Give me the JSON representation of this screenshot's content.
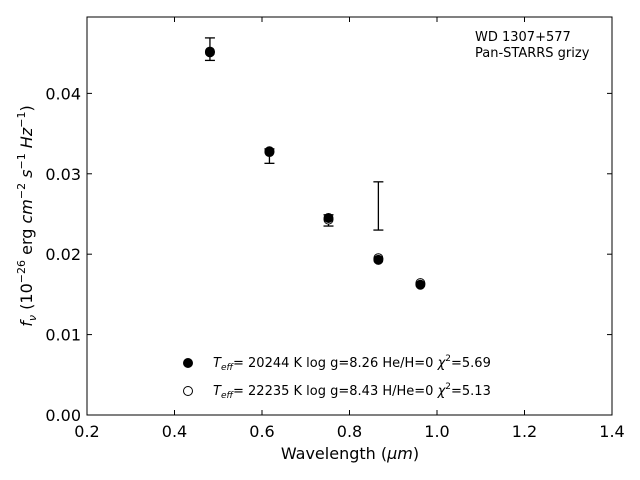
{
  "chart_data": {
    "type": "scatter",
    "xlabel_main": "Wavelength (",
    "xlabel_unit": "μm",
    "xlabel_close": ")",
    "ylabel_f": "f",
    "ylabel_nu": "ν",
    "ylabel_rest": "(10",
    "ylabel_exp1": "−26",
    "ylabel_erg": " erg ",
    "ylabel_cm": "cm",
    "ylabel_exp2": "−2",
    "ylabel_s": " s",
    "ylabel_exp3": "−1",
    "ylabel_hz": " Hz",
    "ylabel_exp4": "−1",
    "ylabel_close": ")",
    "xlim": [
      0.2,
      1.4
    ],
    "ylim": [
      0.0,
      0.0495
    ],
    "xticks": [
      "0.2",
      "0.4",
      "0.6",
      "0.8",
      "1.0",
      "1.2",
      "1.4"
    ],
    "xtick_values": [
      0.2,
      0.4,
      0.6,
      0.8,
      1.0,
      1.2,
      1.4
    ],
    "yticks": [
      "0.00",
      "0.01",
      "0.02",
      "0.03",
      "0.04"
    ],
    "ytick_values": [
      0.0,
      0.01,
      0.02,
      0.03,
      0.04
    ],
    "grid": false,
    "annotation": [
      "WD 1307+577",
      "Pan-STARRS grizy"
    ],
    "observed": [
      {
        "x": 0.481,
        "y": 0.0454,
        "ylow": 0.0441,
        "yhigh": 0.0469
      },
      {
        "x": 0.617,
        "y": 0.0322,
        "ylow": 0.0313,
        "yhigh": 0.0331
      },
      {
        "x": 0.752,
        "y": 0.0242,
        "ylow": 0.0235,
        "yhigh": 0.0249
      },
      {
        "x": 0.866,
        "y": null,
        "ylow": 0.023,
        "yhigh": 0.029
      }
    ],
    "series": [
      {
        "marker": "filled",
        "x": [
          0.481,
          0.617,
          0.752,
          0.866,
          0.962
        ],
        "y": [
          0.0451,
          0.0328,
          0.0245,
          0.0193,
          0.0162
        ]
      },
      {
        "marker": "open",
        "x": [
          0.481,
          0.617,
          0.752,
          0.866,
          0.962
        ],
        "y": [
          0.0452,
          0.0327,
          0.0243,
          0.0195,
          0.0164
        ]
      }
    ],
    "legend": [
      {
        "marker": "filled",
        "teff_sym": "T",
        "teff_sub": "eff",
        "text": "= 20244 K  log g=8.26  He/H=0  ",
        "chi": "χ",
        "chi_exp": "2",
        "chi_val": "=5.69"
      },
      {
        "marker": "open",
        "teff_sym": "T",
        "teff_sub": "eff",
        "text": "= 22235 K  log g=8.43  H/He=0  ",
        "chi": "χ",
        "chi_exp": "2",
        "chi_val": "=5.13"
      }
    ]
  }
}
